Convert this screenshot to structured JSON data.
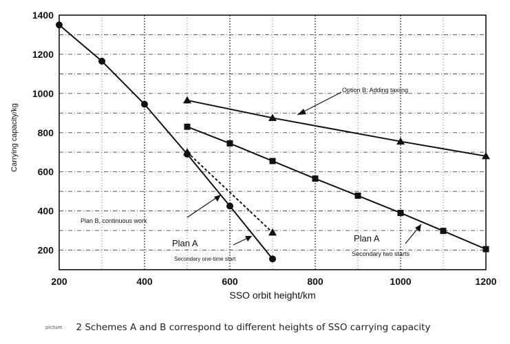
{
  "chart_data": {
    "type": "line",
    "xlabel": "SSO orbit height/km",
    "ylabel": "Carrying capacity/kg",
    "xlim": [
      200,
      1200
    ],
    "ylim": [
      100,
      1400
    ],
    "x_ticks": [
      "200",
      "400",
      "600",
      "800",
      "1000",
      "1200"
    ],
    "y_ticks": [
      "200",
      "400",
      "600",
      "800",
      "1000",
      "1200",
      "1400"
    ],
    "grid": true,
    "series": [
      {
        "marker": "circle",
        "line": "solid",
        "points": [
          [
            200,
            1350
          ],
          [
            300,
            1165
          ],
          [
            400,
            945
          ],
          [
            500,
            690
          ],
          [
            600,
            425
          ],
          [
            700,
            155
          ]
        ]
      },
      {
        "marker": "triangle",
        "line": "dashed",
        "points": [
          [
            500,
            700
          ],
          [
            700,
            290
          ]
        ]
      },
      {
        "marker": "square",
        "line": "solid",
        "points": [
          [
            500,
            830
          ],
          [
            600,
            745
          ],
          [
            700,
            655
          ],
          [
            800,
            565
          ],
          [
            900,
            478
          ],
          [
            1000,
            390
          ],
          [
            1100,
            298
          ],
          [
            1200,
            205
          ]
        ]
      },
      {
        "marker": "triangle",
        "line": "solid",
        "points": [
          [
            500,
            965
          ],
          [
            700,
            875
          ],
          [
            1000,
            755
          ],
          [
            1200,
            680
          ]
        ]
      }
    ],
    "annotations": {
      "option_b_taxiing": "Option B: Adding taxiing",
      "plan_b_continuous": "Plan B, continuous work",
      "plan_a_left": "Plan A",
      "secondary_one_time": "Secondary one-time start",
      "plan_a_right": "Plan A",
      "secondary_two": "Secondary two starts"
    }
  },
  "caption": {
    "tag": "picture",
    "text": "2 Schemes A and B correspond to different heights of SSO carrying capacity"
  }
}
